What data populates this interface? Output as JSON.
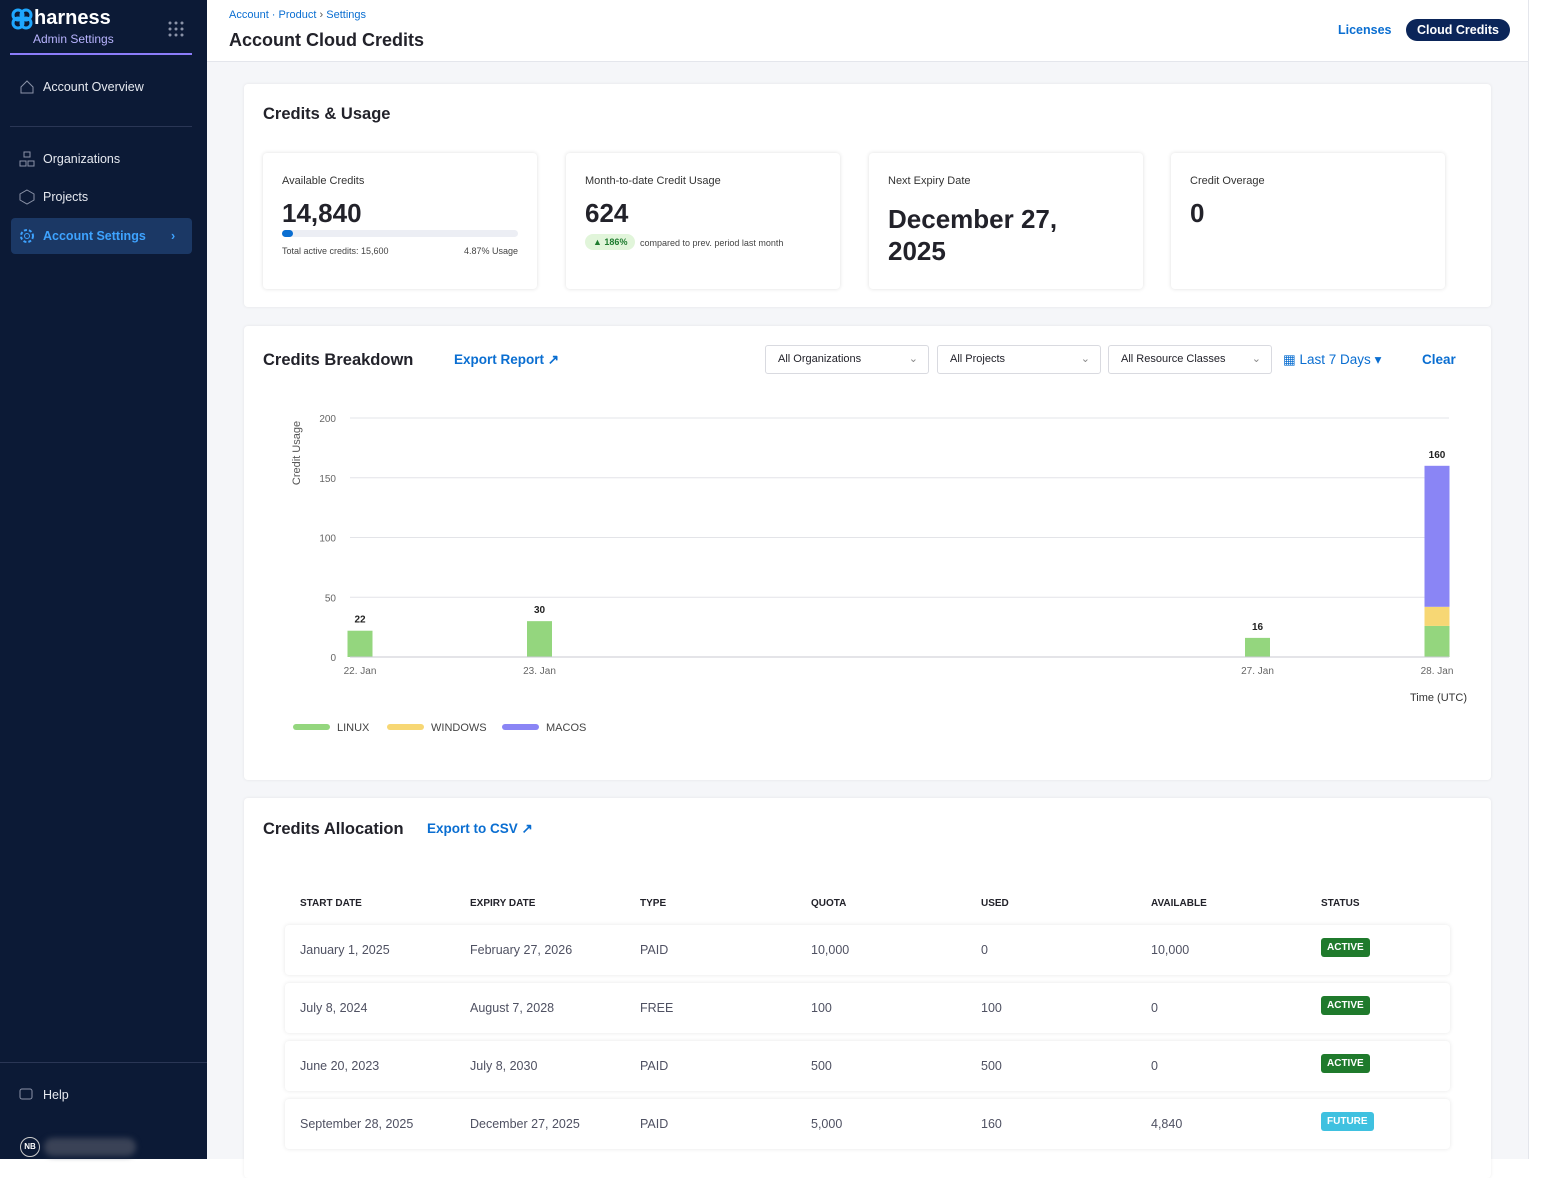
{
  "sidebar": {
    "brand": "harness",
    "subtitle": "Admin Settings",
    "nav": [
      "Account Overview",
      "Organizations",
      "Projects",
      "Account Settings"
    ],
    "help": "Help",
    "avatar": "NB"
  },
  "header": {
    "breadcrumbs": [
      "Account",
      "Product",
      "Settings"
    ],
    "title": "Account Cloud Credits",
    "tabs": [
      "Licenses",
      "Cloud Credits"
    ]
  },
  "usage": {
    "title": "Credits & Usage",
    "available": {
      "label": "Available Credits",
      "value": "14,840",
      "total": "Total active credits: 15,600",
      "usage": "4.87% Usage"
    },
    "month": {
      "label": "Month-to-date Credit Usage",
      "value": "624",
      "badge": "186%",
      "note": "compared to prev. period last month"
    },
    "expiry": {
      "label": "Next Expiry Date",
      "value": "December 27, 2025"
    },
    "overage": {
      "label": "Credit Overage",
      "value": "0"
    }
  },
  "breakdown": {
    "title": "Credits Breakdown",
    "export": "Export Report",
    "filters": [
      "All Organizations",
      "All Projects",
      "All Resource Classes"
    ],
    "date": "Last 7 Days",
    "clear": "Clear"
  },
  "chart_data": {
    "type": "stacked-bar",
    "y_label": "Credit Usage",
    "x_label": "Time (UTC)",
    "categories": [
      "22. Jan",
      "23. Jan",
      null,
      null,
      null,
      "27. Jan",
      "28. Jan"
    ],
    "series": [
      {
        "name": "LINUX",
        "color": "#94d67e",
        "values": [
          22,
          30,
          null,
          null,
          null,
          16,
          26
        ]
      },
      {
        "name": "WINDOWS",
        "color": "#f7d774",
        "values": [
          null,
          null,
          null,
          null,
          null,
          null,
          16
        ]
      },
      {
        "name": "MACOS",
        "color": "#8a85f5",
        "values": [
          null,
          null,
          null,
          null,
          null,
          null,
          118
        ]
      }
    ],
    "totals": [
      22,
      30,
      null,
      null,
      null,
      16,
      160
    ],
    "ylim": [
      0,
      200
    ],
    "yticks": [
      0,
      50,
      100,
      150,
      200
    ],
    "grid": true
  },
  "allocation": {
    "title": "Credits Allocation",
    "export": "Export to CSV",
    "table": {
      "columns": [
        "START DATE",
        "EXPIRY DATE",
        "TYPE",
        "QUOTA",
        "USED",
        "AVAILABLE",
        "STATUS"
      ],
      "rows": [
        [
          "January 1, 2025",
          "February 27, 2026",
          "PAID",
          "10,000",
          "0",
          "10,000",
          "ACTIVE"
        ],
        [
          "July 8, 2024",
          "August 7, 2028",
          "FREE",
          "100",
          "100",
          "0",
          "ACTIVE"
        ],
        [
          "June 20, 2023",
          "July 8, 2030",
          "PAID",
          "500",
          "500",
          "0",
          "ACTIVE"
        ],
        [
          "September 28, 2025",
          "December 27, 2025",
          "PAID",
          "5,000",
          "160",
          "4,840",
          "FUTURE"
        ]
      ]
    }
  }
}
